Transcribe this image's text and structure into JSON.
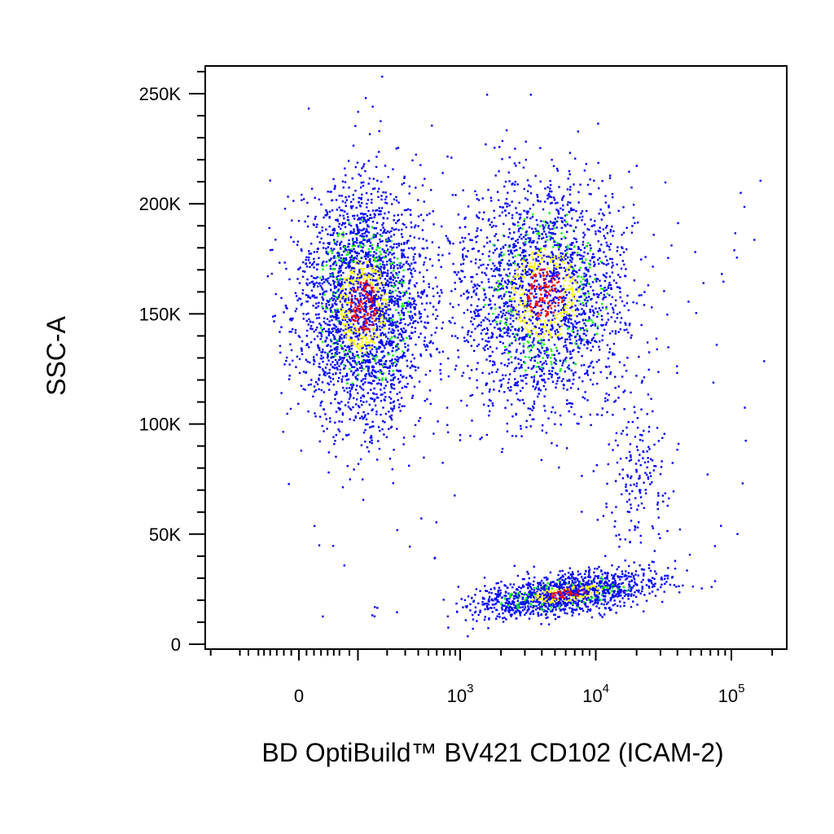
{
  "chart_data": {
    "type": "scatter",
    "style": "flow cytometry pseudocolor density dot plot",
    "xlabel": "BD OptiBuild™ BV421 CD102 (ICAM-2)",
    "ylabel": "SSC-A",
    "x_scale": "biexponential",
    "x_tick_labels": [
      "0",
      "10",
      "10",
      "10"
    ],
    "x_tick_exponents": [
      "",
      "3",
      "4",
      "5"
    ],
    "x_tick_values": [
      0,
      1000,
      10000,
      100000
    ],
    "y_tick_labels": [
      "0",
      "50K",
      "100K",
      "150K",
      "200K",
      "250K"
    ],
    "y_tick_values": [
      0,
      50000,
      100000,
      150000,
      200000,
      250000
    ],
    "ylim": [
      0,
      262144
    ],
    "grid": false,
    "density_colors": [
      "#0000ff",
      "#00ff00",
      "#ffff00",
      "#ff0000"
    ],
    "populations": [
      {
        "x_center": 250,
        "y_center": 155000,
        "approx_share": 0.42
      },
      {
        "x_center": 4500,
        "y_center": 160000,
        "approx_share": 0.36
      },
      {
        "x_center": 6000,
        "y_center": 25000,
        "approx_share": 0.2
      },
      {
        "x_center": 22000,
        "y_center": 80000,
        "approx_share": 0.02
      }
    ]
  }
}
